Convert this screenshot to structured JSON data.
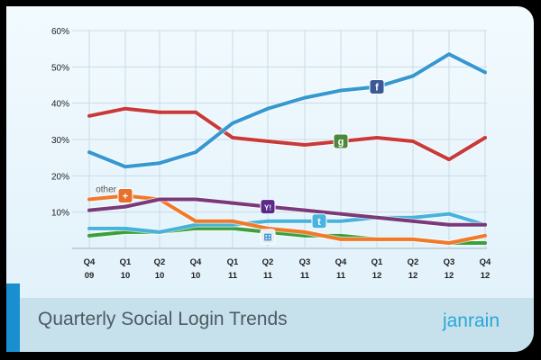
{
  "chart_data": {
    "type": "line",
    "title": "Quarterly Social Login Trends",
    "xlabel": "",
    "ylabel": "",
    "ylim": [
      0,
      60
    ],
    "yticks": [
      "10%",
      "20%",
      "30%",
      "40%",
      "50%",
      "60%"
    ],
    "grid": true,
    "categories": [
      [
        "Q4",
        "09"
      ],
      [
        "Q1",
        "10"
      ],
      [
        "Q2",
        "10"
      ],
      [
        "Q4",
        "10"
      ],
      [
        "Q1",
        "11"
      ],
      [
        "Q2",
        "11"
      ],
      [
        "Q3",
        "11"
      ],
      [
        "Q4",
        "11"
      ],
      [
        "Q1",
        "12"
      ],
      [
        "Q2",
        "12"
      ],
      [
        "Q3",
        "12"
      ],
      [
        "Q4",
        "12"
      ]
    ],
    "series": [
      {
        "id": "facebook",
        "icon": "facebook-icon",
        "color": "#3598d0",
        "values": [
          26.5,
          22.5,
          23.5,
          26.5,
          34.5,
          38.5,
          41.5,
          43.5,
          44.5,
          47.5,
          53.5,
          48.5
        ]
      },
      {
        "id": "google",
        "icon": "google-icon",
        "color": "#c83a3a",
        "values": [
          36.5,
          38.5,
          37.5,
          37.5,
          30.5,
          29.5,
          28.5,
          29.5,
          30.5,
          29.5,
          24.5,
          30.5
        ]
      },
      {
        "id": "yahoo",
        "icon": "yahoo-icon",
        "color": "#7a3a7a",
        "values": [
          10.5,
          11.5,
          13.5,
          13.5,
          12.5,
          11.5,
          10.5,
          9.5,
          8.5,
          7.5,
          6.5,
          6.5
        ]
      },
      {
        "id": "other",
        "icon": "plus-icon",
        "label": "other",
        "color": "#f07a2a",
        "values": [
          13.5,
          14.5,
          13.5,
          7.5,
          7.5,
          5.5,
          4.5,
          2.5,
          2.5,
          2.5,
          1.5,
          3.5
        ]
      },
      {
        "id": "twitter",
        "icon": "twitter-icon",
        "color": "#45b3dc",
        "values": [
          5.5,
          5.5,
          4.5,
          6.5,
          6.5,
          7.5,
          7.5,
          7.5,
          8.5,
          8.5,
          9.5,
          6.5
        ]
      },
      {
        "id": "windows",
        "icon": "windows-icon",
        "color": "#3aa03a",
        "values": [
          3.5,
          4.5,
          4.5,
          5.5,
          5.5,
          4.5,
          3.5,
          3.5,
          2.5,
          2.5,
          1.5,
          1.5
        ]
      }
    ]
  },
  "footer": {
    "title": "Quarterly Social Login Trends",
    "logo": "janrain"
  }
}
